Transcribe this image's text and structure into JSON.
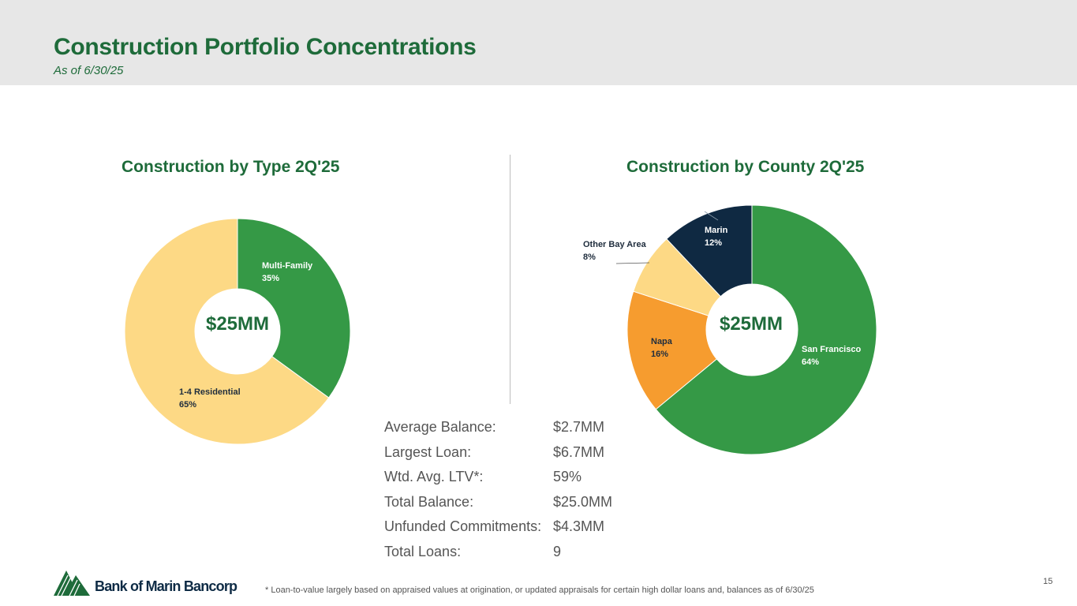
{
  "header": {
    "title": "Construction Portfolio Concentrations",
    "subtitle": "As of 6/30/25"
  },
  "chart_data": [
    {
      "type": "pie",
      "title": "Construction by Type 2Q'25",
      "center_label": "$25MM",
      "categories": [
        "Multi-Family",
        "1-4 Residential"
      ],
      "values": [
        35,
        65
      ],
      "value_labels": [
        "35%",
        "65%"
      ],
      "colors": [
        "#359946",
        "#fdd985"
      ],
      "label_colors": [
        "#ffffff",
        "#1f2d3d"
      ]
    },
    {
      "type": "pie",
      "title": "Construction by County 2Q'25",
      "center_label": "$25MM",
      "categories": [
        "San Francisco",
        "Napa",
        "Other Bay Area",
        "Marin"
      ],
      "values": [
        64,
        16,
        8,
        12
      ],
      "value_labels": [
        "64%",
        "16%",
        "8%",
        "12%"
      ],
      "colors": [
        "#359946",
        "#f69c2f",
        "#fdd985",
        "#0f2942"
      ],
      "label_colors": [
        "#ffffff",
        "#1f2d3d",
        "#1f2d3d",
        "#ffffff"
      ]
    }
  ],
  "stats": [
    {
      "label": "Average Balance:",
      "value": "$2.7MM"
    },
    {
      "label": "Largest Loan:",
      "value": "$6.7MM"
    },
    {
      "label": "Wtd. Avg. LTV*:",
      "value": "59%"
    },
    {
      "label": "Total Balance:",
      "value": "$25.0MM"
    },
    {
      "label": "Unfunded Commitments:",
      "value": "$4.3MM"
    },
    {
      "label": "Total Loans:",
      "value": "9"
    }
  ],
  "footer": {
    "logo_text": "Bank of Marin Bancorp",
    "footnote": "*  Loan-to-value largely based on appraised values at origination, or updated appraisals for certain high dollar loans and, balances as of 6/30/25",
    "page_number": "15"
  }
}
